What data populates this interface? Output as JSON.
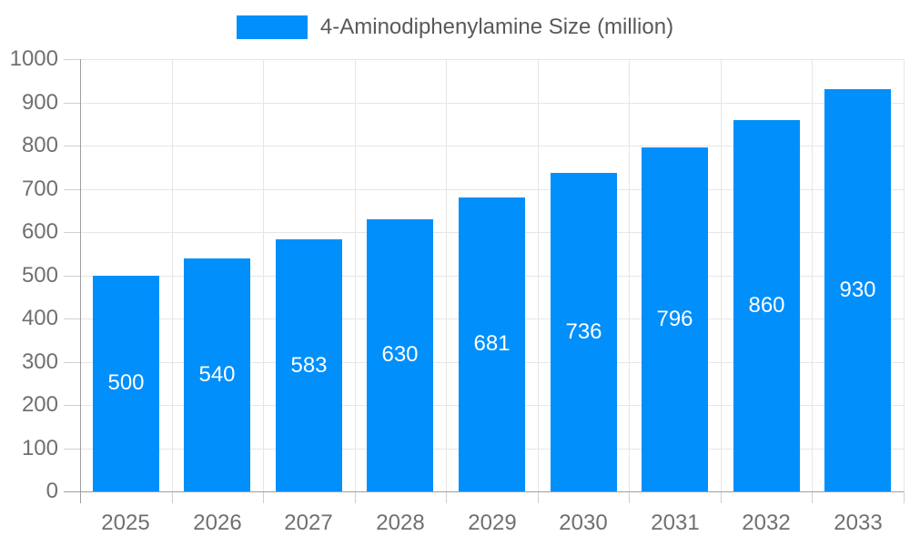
{
  "legend": {
    "label": "4-Aminodiphenylamine Size (million)"
  },
  "chart_data": {
    "type": "bar",
    "title": "4-Aminodiphenylamine Size (million)",
    "categories": [
      "2025",
      "2026",
      "2027",
      "2028",
      "2029",
      "2030",
      "2031",
      "2032",
      "2033"
    ],
    "values": [
      500,
      540,
      583,
      630,
      681,
      736,
      796,
      860,
      930
    ],
    "xlabel": "",
    "ylabel": "",
    "ylim": [
      0,
      1000
    ],
    "ytick_step": 100,
    "grid": true,
    "legend_position": "top"
  },
  "colors": {
    "bar": "#008FFB",
    "value_label": "#ffffff",
    "grid": "#e6e6e6",
    "axis": "#9e9e9e",
    "tick": "#d0d0d0",
    "axis_label": "#707070",
    "legend_text": "#595959",
    "background": "#ffffff"
  }
}
